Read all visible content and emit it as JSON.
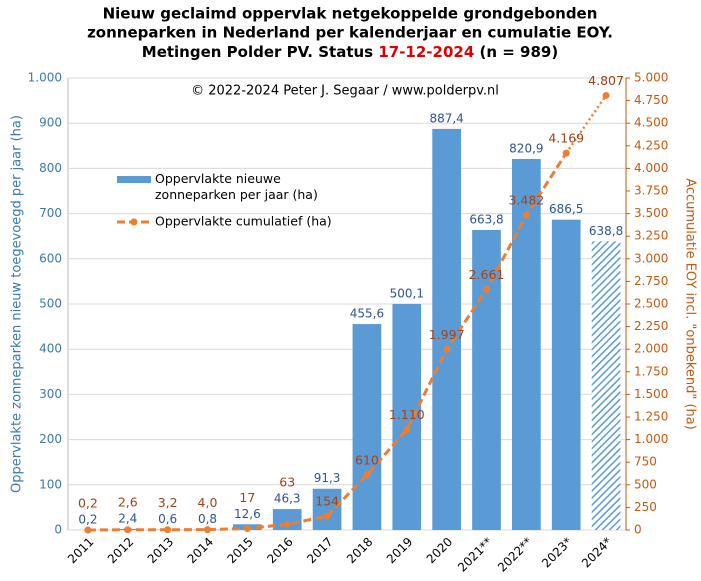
{
  "chart_data": {
    "type": "bar_line",
    "title": [
      "Nieuw geclaimd  oppervlak netgekoppelde grondgebonden",
      "zonneparken in Nederland per kalenderjaar en cumulatie  EOY.",
      [
        "Metingen Polder PV. Status ",
        "17-12-2024",
        " (n = 989)"
      ]
    ],
    "annotation": "© 2022-2024  Peter J. Segaar / www.polderpv.nl",
    "ylabel": "Oppervlakte zonneparken  nieuw toegevoegd per jaar (ha)",
    "y2label": "Accumulatie EOY incl. \"onbekend\"  (ha)",
    "categories": [
      "2011",
      "2012",
      "2013",
      "2014",
      "2015",
      "2016",
      "2017",
      "2018",
      "2019",
      "2020",
      "2021**",
      "2022**",
      "2023*",
      "2024*"
    ],
    "series": [
      {
        "name": "Oppervlakte nieuwe zonneparken per jaar (ha)",
        "color": "#5b9bd5",
        "axis": "y",
        "values": [
          0.2,
          2.4,
          0.6,
          0.8,
          12.6,
          46.3,
          91.3,
          455.6,
          500.1,
          887.4,
          663.8,
          820.9,
          686.5,
          638.8
        ],
        "value_labels": [
          "0,2",
          "2,4",
          "0,6",
          "0,8",
          "12,6",
          "46,3",
          "91,3",
          "455,6",
          "500,1",
          "887,4",
          "663,8",
          "820,9",
          "686,5",
          "638,8"
        ]
      },
      {
        "name": "Oppervlakte cumulatief (ha)",
        "color": "#ed7d31",
        "axis": "y2",
        "values": [
          0.2,
          2.6,
          3.2,
          4.0,
          17,
          63,
          154,
          610,
          1110,
          1997,
          2661,
          3482,
          4169,
          4807
        ],
        "value_labels": [
          "0,2",
          "2,6",
          "3,2",
          "4,0",
          "17",
          "63",
          "154",
          "610",
          "1.110",
          "1.997",
          "2.661",
          "3.482",
          "4.169",
          "4.807"
        ]
      }
    ],
    "ylim": [
      0,
      1000
    ],
    "yticks": [
      0,
      100,
      200,
      300,
      400,
      500,
      600,
      700,
      800,
      900,
      {
        "value": 1000,
        "label": "1.000"
      }
    ],
    "y2lim": [
      0,
      5000
    ],
    "y2ticks": [
      0,
      250,
      500,
      750,
      {
        "value": 1000,
        "label": "1.000"
      },
      {
        "value": 1250,
        "label": "1.250"
      },
      {
        "value": 1500,
        "label": "1.500"
      },
      {
        "value": 1750,
        "label": "1.750"
      },
      {
        "value": 2000,
        "label": "2.000"
      },
      {
        "value": 2250,
        "label": "2.250"
      },
      {
        "value": 2500,
        "label": "2.500"
      },
      {
        "value": 2750,
        "label": "2.750"
      },
      {
        "value": 3000,
        "label": "3.000"
      },
      {
        "value": 3250,
        "label": "3.250"
      },
      {
        "value": 3500,
        "label": "3.500"
      },
      {
        "value": 3750,
        "label": "3.750"
      },
      {
        "value": 4000,
        "label": "4.000"
      },
      {
        "value": 4250,
        "label": "4.250"
      },
      {
        "value": 4500,
        "label": "4.500"
      },
      {
        "value": 4750,
        "label": "4.750"
      },
      {
        "value": 5000,
        "label": "5.000"
      }
    ],
    "grid": true
  }
}
